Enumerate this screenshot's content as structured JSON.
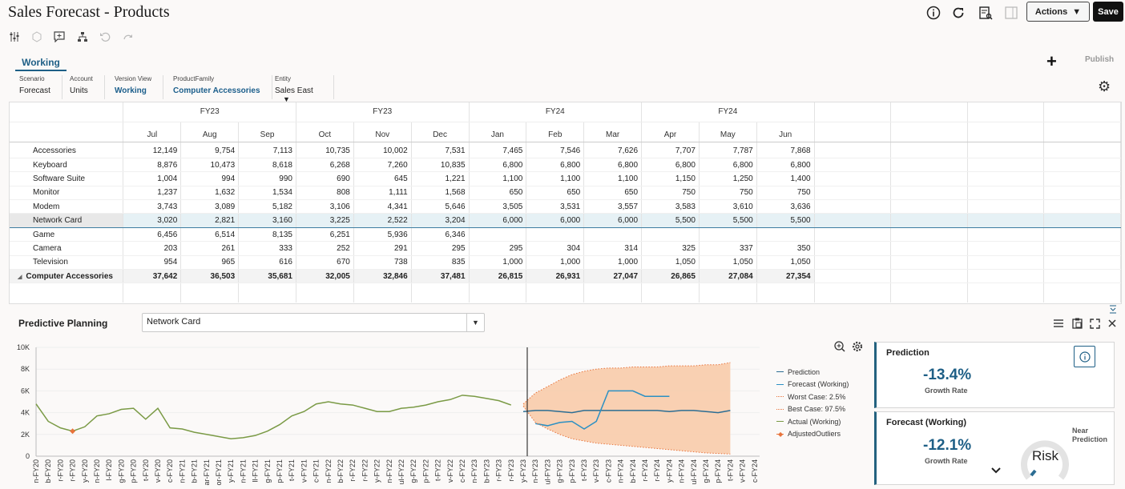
{
  "app": {
    "title": "Sales Forecast - Products"
  },
  "header": {
    "actions_label": "Actions",
    "save_label": "Save",
    "icons": [
      "info-icon",
      "refresh-icon",
      "report-icon",
      "panel-icon"
    ]
  },
  "toolbar": {
    "icons": [
      "adjust-icon",
      "cube-icon",
      "comment-icon",
      "hierarchy-icon",
      "undo-icon",
      "redo-icon"
    ]
  },
  "tabs": [
    {
      "label": "Working"
    }
  ],
  "tab_actions": {
    "add": "+",
    "publish_label": "Publish"
  },
  "pov": [
    {
      "label": "Scenario",
      "value": "Forecast"
    },
    {
      "label": "Account",
      "value": "Units"
    },
    {
      "label": "Version View",
      "value": "Working"
    },
    {
      "label": "ProductFamily",
      "value": "Computer Accessories"
    },
    {
      "label": "Entity",
      "value": "Sales East"
    }
  ],
  "grid": {
    "years": [
      "FY23",
      "FY23",
      "FY24",
      "FY24"
    ],
    "months": [
      "Jul",
      "Aug",
      "Sep",
      "Oct",
      "Nov",
      "Dec",
      "Jan",
      "Feb",
      "Mar",
      "Apr",
      "May",
      "Jun"
    ],
    "rows": [
      {
        "label": "Accessories",
        "values": [
          "12,149",
          "9,754",
          "7,113",
          "10,735",
          "10,002",
          "7,531",
          "7,465",
          "7,546",
          "7,626",
          "7,707",
          "7,787",
          "7,868"
        ]
      },
      {
        "label": "Keyboard",
        "values": [
          "8,876",
          "10,473",
          "8,618",
          "6,268",
          "7,260",
          "10,835",
          "6,800",
          "6,800",
          "6,800",
          "6,800",
          "6,800",
          "6,800"
        ]
      },
      {
        "label": "Software Suite",
        "values": [
          "1,004",
          "994",
          "990",
          "690",
          "645",
          "1,221",
          "1,100",
          "1,100",
          "1,100",
          "1,150",
          "1,250",
          "1,400"
        ]
      },
      {
        "label": "Monitor",
        "values": [
          "1,237",
          "1,632",
          "1,534",
          "808",
          "1,111",
          "1,568",
          "650",
          "650",
          "650",
          "750",
          "750",
          "750"
        ]
      },
      {
        "label": "Modem",
        "values": [
          "3,743",
          "3,089",
          "5,182",
          "3,106",
          "4,341",
          "5,646",
          "3,505",
          "3,531",
          "3,557",
          "3,583",
          "3,610",
          "3,636"
        ]
      },
      {
        "label": "Network Card",
        "values": [
          "3,020",
          "2,821",
          "3,160",
          "3,225",
          "2,522",
          "3,204",
          "6,000",
          "6,000",
          "6,000",
          "5,500",
          "5,500",
          "5,500"
        ]
      },
      {
        "label": "Game",
        "values": [
          "6,456",
          "6,514",
          "8,135",
          "6,251",
          "5,936",
          "6,346",
          "",
          "",
          "",
          "",
          "",
          ""
        ]
      },
      {
        "label": "Camera",
        "values": [
          "203",
          "261",
          "333",
          "252",
          "291",
          "295",
          "295",
          "304",
          "314",
          "325",
          "337",
          "350"
        ]
      },
      {
        "label": "Television",
        "values": [
          "954",
          "965",
          "616",
          "670",
          "738",
          "835",
          "1,000",
          "1,000",
          "1,000",
          "1,050",
          "1,050",
          "1,050"
        ]
      },
      {
        "label": "Computer Accessories",
        "values": [
          "37,642",
          "36,503",
          "35,681",
          "32,005",
          "32,846",
          "37,481",
          "26,815",
          "26,931",
          "27,047",
          "26,865",
          "27,084",
          "27,354"
        ]
      }
    ]
  },
  "predictive": {
    "title": "Predictive Planning",
    "member": "Network Card",
    "tools": [
      "menu-icon",
      "clipboard-icon",
      "expand-icon",
      "close-icon"
    ]
  },
  "chart_data": {
    "type": "line",
    "ylim": [
      0,
      10000
    ],
    "yticks": [
      "0",
      "2K",
      "4K",
      "6K",
      "8K",
      "10K"
    ],
    "x_labels": [
      "n-FY20",
      "b-FY20",
      "r-FY20",
      "r-FY20",
      "y-FY20",
      "n-FY20",
      "l-FY20",
      "g-FY20",
      "p-FY20",
      "t-FY20",
      "v-FY20",
      "c-FY20",
      "n-FY21",
      "b-FY21",
      "ar-FY21",
      "or-FY21",
      "y-FY21",
      "n-FY21",
      "ll-FY21",
      "g-FY21",
      "p-FY21",
      "t-FY21",
      "v-FY21",
      "c-FY21",
      "n-FY22",
      "b-FY22",
      "r-FY22",
      "r-FY22",
      "y-FY22",
      "n-FY22",
      "ul-FY22",
      "g-FY22",
      "p-FY22",
      "t-FY22",
      "v-FY22",
      "c-FY22",
      "n-FY23",
      "b-FY23",
      "r-FY23",
      "r-FY23",
      "y-FY23",
      "n-FY23",
      "ul-FY23",
      "g-FY23",
      "p-FY23",
      "t-FY23",
      "v-FY23",
      "c-FY23",
      "n-FY24",
      "b-FY24",
      "r-FY24",
      "r-FY24",
      "y-FY24",
      "n-FY24",
      "ul-FY24",
      "g-FY24",
      "p-FY24",
      "t-FY24",
      "v-FY24",
      "c-FY24"
    ],
    "series": [
      {
        "name": "Actual (Working)",
        "color": "#7a9a45",
        "start": 0,
        "values": [
          4800,
          3200,
          2600,
          2300,
          2700,
          3700,
          3900,
          4300,
          4400,
          3400,
          4400,
          2600,
          2500,
          2200,
          2000,
          1800,
          1600,
          1700,
          1900,
          2300,
          2900,
          3700,
          4100,
          4800,
          5000,
          4800,
          4700,
          4400,
          4100,
          4100,
          4400,
          4500,
          4700,
          5000,
          5200,
          5600,
          5500,
          5300,
          5100,
          4700
        ]
      },
      {
        "name": "Prediction",
        "color": "#2c6d93",
        "start": 40,
        "values": [
          4100,
          4200,
          4200,
          4100,
          4000,
          4200,
          4200,
          4200,
          4200,
          4200,
          4200,
          4200,
          4100,
          4200,
          4200,
          4100,
          4000,
          4200
        ]
      },
      {
        "name": "Forecast (Working)",
        "color": "#2c90c3",
        "start": 41,
        "values": [
          3000,
          2800,
          3100,
          3200,
          2500,
          3200,
          6000,
          6000,
          6000,
          5500,
          5500,
          5500
        ]
      },
      {
        "name": "Worst Case: 2.5%",
        "color": "#e8733b",
        "start": 40,
        "values": [
          4600,
          3100,
          2500,
          2000,
          1600,
          1400,
          1200,
          1100,
          1000,
          900,
          800,
          700,
          600,
          500,
          400,
          300,
          250,
          200
        ]
      },
      {
        "name": "Best Case: 97.5%",
        "color": "#e8733b",
        "start": 40,
        "values": [
          4800,
          5800,
          6400,
          7000,
          7500,
          7800,
          8000,
          8100,
          8100,
          8200,
          8200,
          8200,
          8300,
          8300,
          8300,
          8400,
          8400,
          8600
        ]
      },
      {
        "name": "AdjustedOutliers",
        "color": "#e8733b",
        "start": 3,
        "values": [
          2300
        ]
      }
    ]
  },
  "cards": [
    {
      "title": "Prediction",
      "value": "-13.4%",
      "value_label": "Growth Rate"
    },
    {
      "title": "Forecast (Working)",
      "value": "-12.1%",
      "value_label": "Growth Rate",
      "gauge_label": "Risk",
      "gauge_caption": "Near Prediction"
    }
  ]
}
